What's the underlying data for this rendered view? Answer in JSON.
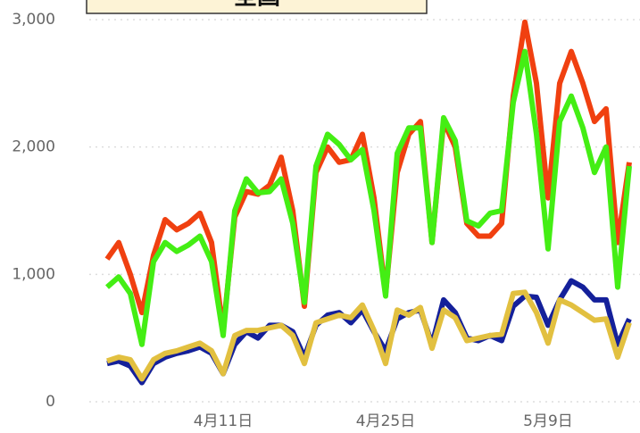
{
  "chart_data": {
    "type": "line",
    "title": "全国",
    "categories": [
      null,
      null,
      null,
      null,
      null,
      null,
      null,
      null,
      null,
      null,
      "4月11日",
      null,
      null,
      null,
      null,
      null,
      null,
      null,
      null,
      null,
      null,
      null,
      null,
      null,
      "4月25日",
      null,
      null,
      null,
      null,
      null,
      null,
      null,
      null,
      null,
      null,
      null,
      null,
      null,
      "5月9日",
      null,
      null,
      null,
      null,
      null,
      null,
      null
    ],
    "series": [
      {
        "color": "#f04010",
        "values": [
          1120,
          1250,
          1000,
          700,
          1150,
          1430,
          1350,
          1400,
          1480,
          1250,
          560,
          1450,
          1650,
          1630,
          1700,
          1920,
          1500,
          750,
          1800,
          2000,
          1880,
          1900,
          2100,
          1600,
          850,
          1800,
          2100,
          2200,
          1250,
          2200,
          2000,
          1400,
          1300,
          1300,
          1400,
          2400,
          2980,
          2500,
          1600,
          2500,
          2750,
          2500,
          2200,
          2300,
          1250,
          1880
        ]
      },
      {
        "color": "#44ee14",
        "values": [
          900,
          980,
          850,
          450,
          1100,
          1250,
          1180,
          1230,
          1300,
          1100,
          520,
          1500,
          1750,
          1640,
          1650,
          1750,
          1400,
          780,
          1850,
          2100,
          2020,
          1900,
          1980,
          1500,
          830,
          1950,
          2150,
          2150,
          1250,
          2230,
          2050,
          1420,
          1380,
          1480,
          1500,
          2350,
          2750,
          2100,
          1200,
          2200,
          2400,
          2150,
          1800,
          2000,
          900,
          1850
        ]
      },
      {
        "color": "#14209a",
        "values": [
          300,
          320,
          280,
          150,
          300,
          350,
          380,
          400,
          430,
          380,
          220,
          450,
          550,
          500,
          600,
          600,
          550,
          350,
          600,
          680,
          700,
          620,
          720,
          550,
          400,
          650,
          700,
          720,
          450,
          800,
          700,
          500,
          480,
          520,
          480,
          750,
          830,
          820,
          600,
          800,
          950,
          900,
          800,
          800,
          450,
          650
        ]
      },
      {
        "color": "#e2c040",
        "values": [
          320,
          350,
          330,
          180,
          330,
          380,
          400,
          430,
          460,
          400,
          220,
          520,
          560,
          560,
          580,
          600,
          520,
          300,
          620,
          650,
          680,
          660,
          760,
          560,
          300,
          720,
          680,
          740,
          420,
          720,
          660,
          480,
          500,
          520,
          530,
          850,
          860,
          700,
          460,
          800,
          760,
          700,
          640,
          650,
          350,
          620
        ]
      }
    ],
    "ylim": [
      0,
      3000
    ],
    "yticks": [
      0,
      {
        "value": 1000,
        "label": "1,000"
      },
      {
        "value": 2000,
        "label": "2,000"
      },
      {
        "value": 3000,
        "label": "3,000"
      }
    ],
    "grid": true
  }
}
